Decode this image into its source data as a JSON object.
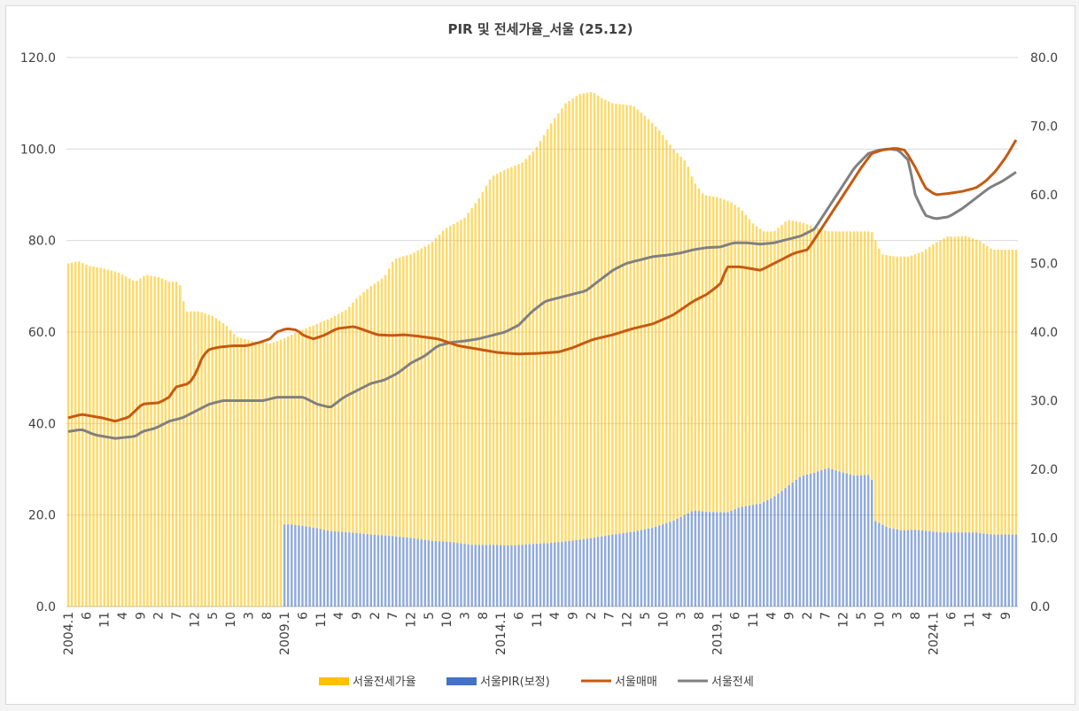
{
  "chart_data": {
    "type": "bar+line",
    "title": "PIR 및 전세가율_서울 (25.12)",
    "x_start": "2004.1",
    "x_end": "2025.12",
    "x_tick_labels": [
      "2004.1",
      "6",
      "11",
      "4",
      "9",
      "2",
      "7",
      "12",
      "5",
      "10",
      "3",
      "8",
      "2009.1",
      "6",
      "11",
      "4",
      "9",
      "2",
      "7",
      "12",
      "5",
      "10",
      "3",
      "8",
      "2014.1",
      "6",
      "11",
      "4",
      "9",
      "2",
      "7",
      "12",
      "5",
      "10",
      "3",
      "8",
      "2019.1",
      "6",
      "11",
      "4",
      "9",
      "2",
      "7",
      "12",
      "5",
      "10",
      "3",
      "8",
      "2024.1",
      "6",
      "11",
      "4",
      "9"
    ],
    "y_left_ticks": [
      "0.0",
      "20.0",
      "40.0",
      "60.0",
      "80.0",
      "100.0",
      "120.0"
    ],
    "y_left_range": [
      0,
      120
    ],
    "y_right_ticks": [
      "0.0",
      "10.0",
      "20.0",
      "30.0",
      "40.0",
      "50.0",
      "60.0",
      "70.0",
      "80.0"
    ],
    "y_right_range": [
      0,
      80
    ],
    "grid": "horizontal",
    "legend_position": "bottom",
    "series": [
      {
        "name": "서울전세가율",
        "kind": "bar",
        "axis": "left",
        "color": "#ffc000",
        "anchors": [
          [
            0,
            75
          ],
          [
            3,
            75.5
          ],
          [
            6,
            74.5
          ],
          [
            10,
            74
          ],
          [
            15,
            73
          ],
          [
            20,
            71
          ],
          [
            23,
            72.5
          ],
          [
            27,
            72
          ],
          [
            30,
            71
          ],
          [
            33,
            71
          ],
          [
            35,
            64.5
          ],
          [
            39,
            64.5
          ],
          [
            43,
            63.5
          ],
          [
            47,
            61.5
          ],
          [
            50,
            59
          ],
          [
            55,
            58
          ],
          [
            60,
            57.5
          ],
          [
            64,
            58.5
          ],
          [
            68,
            60
          ],
          [
            73,
            61.5
          ],
          [
            78,
            63
          ],
          [
            83,
            65
          ],
          [
            86,
            67.5
          ],
          [
            90,
            70
          ],
          [
            94,
            72
          ],
          [
            97,
            76
          ],
          [
            102,
            77
          ],
          [
            108,
            79.5
          ],
          [
            112,
            82.5
          ],
          [
            118,
            85
          ],
          [
            122,
            89
          ],
          [
            126,
            94
          ],
          [
            130,
            95.5
          ],
          [
            135,
            97
          ],
          [
            139,
            100
          ],
          [
            144,
            106
          ],
          [
            148,
            110
          ],
          [
            152,
            112
          ],
          [
            156,
            112.5
          ],
          [
            159,
            111
          ],
          [
            162,
            110
          ],
          [
            168,
            109.5
          ],
          [
            172,
            107
          ],
          [
            176,
            104
          ],
          [
            180,
            100
          ],
          [
            184,
            97
          ],
          [
            186,
            93
          ],
          [
            189,
            90
          ],
          [
            193,
            89.5
          ],
          [
            197,
            88.5
          ],
          [
            200,
            87
          ],
          [
            204,
            83.5
          ],
          [
            207,
            82
          ],
          [
            210,
            82
          ],
          [
            214,
            84.5
          ],
          [
            218,
            84
          ],
          [
            222,
            83
          ],
          [
            226,
            82
          ],
          [
            230,
            82
          ],
          [
            235,
            82
          ],
          [
            239,
            82
          ],
          [
            242,
            77
          ],
          [
            246,
            76.5
          ],
          [
            250,
            76.5
          ],
          [
            254,
            77.5
          ],
          [
            258,
            79.5
          ],
          [
            262,
            81
          ],
          [
            267,
            81
          ],
          [
            271,
            80
          ],
          [
            275,
            78
          ],
          [
            263,
            80.8
          ]
        ]
      },
      {
        "name": "서울PIR(보정)",
        "kind": "bar",
        "axis": "right",
        "color": "#4472c4",
        "starts_at": "2009.1",
        "anchors": [
          [
            60,
            11.8
          ],
          [
            66,
            12
          ],
          [
            72,
            11.6
          ],
          [
            78,
            11
          ],
          [
            84,
            10.8
          ],
          [
            90,
            10.5
          ],
          [
            96,
            10.3
          ],
          [
            102,
            10
          ],
          [
            108,
            9.6
          ],
          [
            114,
            9.4
          ],
          [
            120,
            9
          ],
          [
            126,
            9
          ],
          [
            132,
            8.9
          ],
          [
            138,
            9.1
          ],
          [
            144,
            9.3
          ],
          [
            150,
            9.6
          ],
          [
            156,
            10
          ],
          [
            162,
            10.5
          ],
          [
            168,
            10.9
          ],
          [
            174,
            11.5
          ],
          [
            180,
            12.5
          ],
          [
            186,
            14
          ],
          [
            190,
            13.8
          ],
          [
            196,
            13.7
          ],
          [
            200,
            14.5
          ],
          [
            206,
            15
          ],
          [
            210,
            16
          ],
          [
            214,
            17.5
          ],
          [
            218,
            19
          ],
          [
            222,
            19.5
          ],
          [
            226,
            20.2
          ],
          [
            230,
            19.6
          ],
          [
            234,
            19.1
          ],
          [
            239,
            19.2
          ],
          [
            240,
            12.5
          ],
          [
            244,
            11.5
          ],
          [
            248,
            11.1
          ],
          [
            252,
            11.2
          ],
          [
            256,
            11
          ],
          [
            260,
            10.8
          ],
          [
            266,
            10.8
          ],
          [
            270,
            10.8
          ],
          [
            273,
            10.6
          ],
          [
            275,
            10.5
          ]
        ]
      },
      {
        "name": "서울매매",
        "kind": "line",
        "axis": "right",
        "color": "#c55a11",
        "anchors": [
          [
            0,
            27.5
          ],
          [
            4,
            28
          ],
          [
            10,
            27.5
          ],
          [
            14,
            27
          ],
          [
            18,
            27.6
          ],
          [
            22,
            29.5
          ],
          [
            27,
            29.7
          ],
          [
            30,
            30.5
          ],
          [
            32,
            32
          ],
          [
            36,
            32.5
          ],
          [
            38,
            34
          ],
          [
            40,
            36.5
          ],
          [
            42,
            37.5
          ],
          [
            45,
            37.8
          ],
          [
            49,
            38
          ],
          [
            53,
            38
          ],
          [
            57,
            38.5
          ],
          [
            60,
            39
          ],
          [
            62,
            40
          ],
          [
            65,
            40.5
          ],
          [
            68,
            40.3
          ],
          [
            70,
            39.5
          ],
          [
            73,
            39
          ],
          [
            76,
            39.5
          ],
          [
            80,
            40.5
          ],
          [
            85,
            40.8
          ],
          [
            88,
            40.3
          ],
          [
            92,
            39.6
          ],
          [
            96,
            39.5
          ],
          [
            100,
            39.6
          ],
          [
            104,
            39.4
          ],
          [
            110,
            39
          ],
          [
            116,
            38
          ],
          [
            122,
            37.5
          ],
          [
            128,
            37
          ],
          [
            134,
            36.8
          ],
          [
            140,
            36.9
          ],
          [
            146,
            37.1
          ],
          [
            150,
            37.7
          ],
          [
            156,
            38.9
          ],
          [
            162,
            39.6
          ],
          [
            168,
            40.5
          ],
          [
            174,
            41.2
          ],
          [
            180,
            42.5
          ],
          [
            186,
            44.5
          ],
          [
            190,
            45.5
          ],
          [
            194,
            47
          ],
          [
            196,
            49.5
          ],
          [
            200,
            49.5
          ],
          [
            206,
            49
          ],
          [
            212,
            50.5
          ],
          [
            216,
            51.5
          ],
          [
            220,
            52
          ],
          [
            224,
            55
          ],
          [
            228,
            58
          ],
          [
            232,
            61
          ],
          [
            236,
            64
          ],
          [
            239,
            66
          ],
          [
            242,
            66.5
          ],
          [
            246,
            66.8
          ],
          [
            249,
            66.5
          ],
          [
            252,
            64
          ],
          [
            255,
            61
          ],
          [
            258,
            60
          ],
          [
            262,
            60.2
          ],
          [
            266,
            60.5
          ],
          [
            270,
            61
          ],
          [
            273,
            62
          ],
          [
            276,
            63.5
          ],
          [
            279,
            65.5
          ],
          [
            282,
            68
          ]
        ]
      },
      {
        "name": "서울전세",
        "kind": "line",
        "axis": "right",
        "color": "#808080",
        "anchors": [
          [
            0,
            25.5
          ],
          [
            4,
            25.8
          ],
          [
            8,
            25
          ],
          [
            14,
            24.5
          ],
          [
            20,
            24.8
          ],
          [
            22,
            25.5
          ],
          [
            26,
            26
          ],
          [
            30,
            27
          ],
          [
            34,
            27.5
          ],
          [
            38,
            28.5
          ],
          [
            42,
            29.5
          ],
          [
            46,
            30
          ],
          [
            50,
            30
          ],
          [
            54,
            30
          ],
          [
            58,
            30
          ],
          [
            62,
            30.5
          ],
          [
            66,
            30.5
          ],
          [
            70,
            30.5
          ],
          [
            74,
            29.5
          ],
          [
            78,
            29
          ],
          [
            82,
            30.5
          ],
          [
            86,
            31.5
          ],
          [
            90,
            32.5
          ],
          [
            94,
            33
          ],
          [
            98,
            34
          ],
          [
            102,
            35.5
          ],
          [
            106,
            36.5
          ],
          [
            110,
            38
          ],
          [
            114,
            38.5
          ],
          [
            118,
            38.7
          ],
          [
            122,
            39
          ],
          [
            126,
            39.5
          ],
          [
            130,
            40
          ],
          [
            134,
            41
          ],
          [
            138,
            43
          ],
          [
            142,
            44.5
          ],
          [
            146,
            45
          ],
          [
            150,
            45.5
          ],
          [
            154,
            46
          ],
          [
            158,
            47.5
          ],
          [
            162,
            49
          ],
          [
            166,
            50
          ],
          [
            170,
            50.5
          ],
          [
            174,
            51
          ],
          [
            178,
            51.2
          ],
          [
            182,
            51.5
          ],
          [
            186,
            52
          ],
          [
            190,
            52.3
          ],
          [
            194,
            52.4
          ],
          [
            198,
            53
          ],
          [
            202,
            53
          ],
          [
            206,
            52.8
          ],
          [
            210,
            53
          ],
          [
            214,
            53.5
          ],
          [
            218,
            54
          ],
          [
            222,
            55
          ],
          [
            226,
            58
          ],
          [
            230,
            61
          ],
          [
            234,
            64
          ],
          [
            238,
            66
          ],
          [
            241,
            66.5
          ],
          [
            244,
            66.7
          ],
          [
            247,
            66.5
          ],
          [
            250,
            65
          ],
          [
            252,
            60
          ],
          [
            255,
            57
          ],
          [
            258,
            56.5
          ],
          [
            262,
            56.8
          ],
          [
            266,
            58
          ],
          [
            270,
            59.5
          ],
          [
            274,
            61
          ],
          [
            278,
            62
          ],
          [
            282,
            63.3
          ]
        ]
      }
    ]
  }
}
